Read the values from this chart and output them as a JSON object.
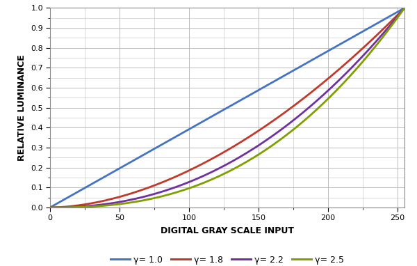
{
  "title": "",
  "xlabel": "DIGITAL GRAY SCALE INPUT",
  "ylabel": "RELATIVE LUMINANCE",
  "xlim": [
    0,
    255
  ],
  "ylim": [
    0.0,
    1.0
  ],
  "xticks": [
    0,
    50,
    100,
    150,
    200,
    250
  ],
  "yticks": [
    0.0,
    0.1,
    0.2,
    0.3,
    0.4,
    0.5,
    0.6,
    0.7,
    0.8,
    0.9,
    1.0
  ],
  "gammas": [
    1.0,
    1.8,
    2.2,
    2.5
  ],
  "gamma_labels": [
    "γ= 1.0",
    "γ= 1.8",
    "γ= 2.2",
    "γ= 2.5"
  ],
  "colors": [
    "#4472C4",
    "#C0392B",
    "#7030A0",
    "#7F9F00"
  ],
  "linewidth": 2.0,
  "fig_bg": "#FFFFFF",
  "plot_bg": "#FFFFFF",
  "grid_color": "#BBBBBB",
  "spine_color": "#888888",
  "xlabel_fontsize": 9,
  "ylabel_fontsize": 9,
  "tick_fontsize": 8,
  "legend_fontsize": 9,
  "legend_ncol": 4
}
